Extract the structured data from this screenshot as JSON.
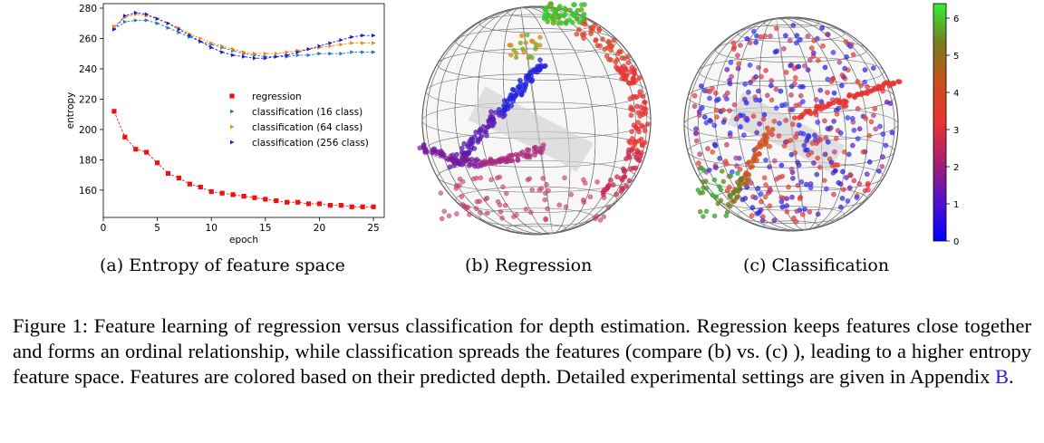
{
  "chart_data": {
    "type": "line",
    "xlabel": "epoch",
    "ylabel": "entropy",
    "xlim": [
      0,
      26
    ],
    "ylim": [
      142,
      283
    ],
    "xticks": [
      0,
      5,
      10,
      15,
      20,
      25
    ],
    "yticks": [
      160,
      180,
      200,
      220,
      240,
      260,
      280
    ],
    "legend_position": "center",
    "series": [
      {
        "name": "regression",
        "color": "#ee1111",
        "marker": "square",
        "x": [
          1,
          2,
          3,
          4,
          5,
          6,
          7,
          8,
          9,
          10,
          11,
          12,
          13,
          14,
          15,
          16,
          17,
          18,
          19,
          20,
          21,
          22,
          23,
          24,
          25
        ],
        "values": [
          212,
          195,
          187,
          185,
          178,
          171,
          168,
          164,
          162,
          159,
          158,
          157,
          156,
          155,
          154,
          153,
          152,
          152,
          151,
          151,
          150,
          150,
          149,
          149,
          149
        ]
      },
      {
        "name": "classification (16 class)",
        "color": "#1f77b4",
        "marker": "triangle-right",
        "x": [
          1,
          2,
          3,
          4,
          5,
          6,
          7,
          8,
          9,
          10,
          11,
          12,
          13,
          14,
          15,
          16,
          17,
          18,
          19,
          20,
          21,
          22,
          23,
          24,
          25
        ],
        "values": [
          266,
          271,
          272,
          272,
          270,
          267,
          264,
          261,
          258,
          256,
          254,
          252,
          250,
          249,
          248,
          248,
          248,
          249,
          249,
          250,
          250,
          250,
          251,
          251,
          251
        ]
      },
      {
        "name": "classification (64 class)",
        "color": "#ff7f0e",
        "marker": "triangle-right",
        "x": [
          1,
          2,
          3,
          4,
          5,
          6,
          7,
          8,
          9,
          10,
          11,
          12,
          13,
          14,
          15,
          16,
          17,
          18,
          19,
          20,
          21,
          22,
          23,
          24,
          25
        ],
        "values": [
          268,
          274,
          276,
          275,
          273,
          270,
          267,
          263,
          260,
          257,
          255,
          253,
          251,
          250,
          250,
          250,
          251,
          252,
          253,
          254,
          255,
          256,
          257,
          257,
          257
        ]
      },
      {
        "name": "classification (256 class)",
        "color": "#1a1acc",
        "marker": "triangle-right",
        "x": [
          1,
          2,
          3,
          4,
          5,
          6,
          7,
          8,
          9,
          10,
          11,
          12,
          13,
          14,
          15,
          16,
          17,
          18,
          19,
          20,
          21,
          22,
          23,
          24,
          25
        ],
        "values": [
          266,
          275,
          277,
          276,
          273,
          270,
          266,
          262,
          258,
          254,
          251,
          249,
          248,
          247,
          247,
          248,
          249,
          251,
          253,
          255,
          257,
          259,
          261,
          262,
          262
        ]
      }
    ]
  },
  "colorbar": {
    "ticks": [
      "0",
      "1",
      "2",
      "3",
      "4",
      "5",
      "6"
    ],
    "colors": [
      "#0000ff",
      "#6a1ab0",
      "#b0285a",
      "#e83333",
      "#c8501a",
      "#8a7020",
      "#33dd33"
    ]
  },
  "captions": {
    "a": "(a) Entropy of feature space",
    "b": "(b) Regression",
    "c": "(c) Classification",
    "figure_text": "Figure 1: Feature learning of regression versus classification for depth estimation. Regression keeps features close together and forms an ordinal relationship, while classification spreads the features (compare (b) vs. (c) ), leading to a higher entropy feature space. Features are colored based on their predicted depth. Detailed experimental settings are given in Appendix ",
    "appendix_link": "B",
    "figure_end": "."
  }
}
